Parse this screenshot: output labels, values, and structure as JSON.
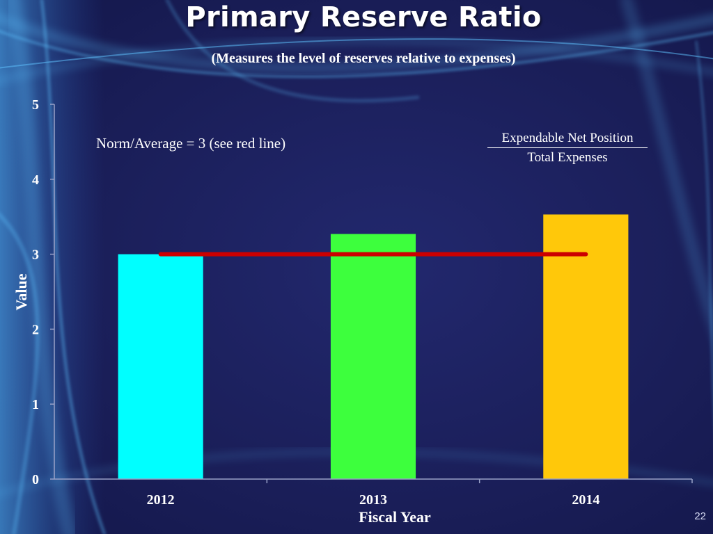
{
  "slide": {
    "title": "Primary Reserve Ratio",
    "subtitle": "(Measures the level of reserves relative to expenses)",
    "norm_note": "Norm/Average =  3 (see red line)",
    "formula_numerator": "Expendable Net Position",
    "formula_denominator": "Total Expenses",
    "page_number": "22"
  },
  "chart_data": {
    "type": "bar",
    "title": "Primary Reserve Ratio",
    "xlabel": "Fiscal Year",
    "ylabel": "Value",
    "categories": [
      "2012",
      "2013",
      "2014"
    ],
    "values": [
      3.0,
      3.27,
      3.53
    ],
    "bar_colors": [
      "#00ffff",
      "#3dff3d",
      "#ffc80a"
    ],
    "ylim": [
      0,
      5
    ],
    "yticks": [
      0,
      1,
      2,
      3,
      4,
      5
    ],
    "reference_line": {
      "value": 3,
      "color": "#cc0000",
      "label": "Norm/Average"
    },
    "grid": false
  }
}
